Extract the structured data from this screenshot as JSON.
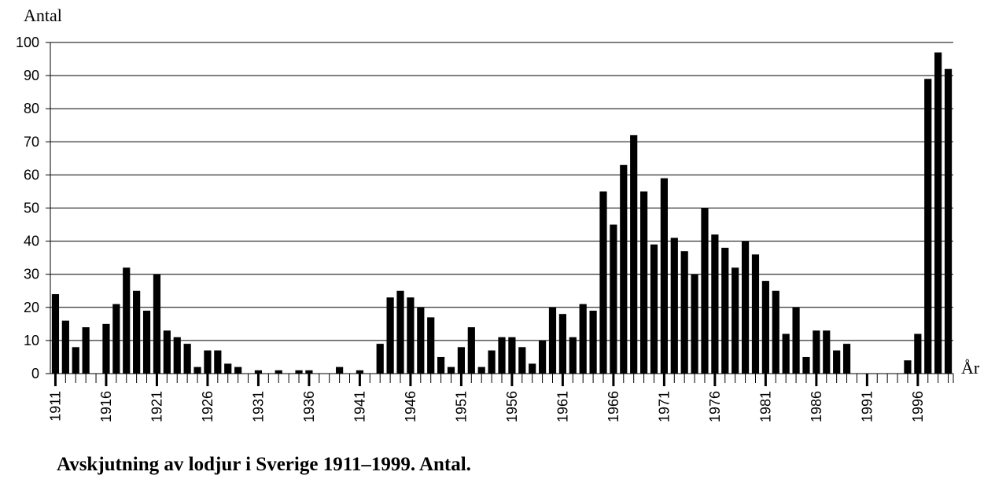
{
  "chart_data": {
    "type": "bar",
    "title": "Avskjutning av lodjur i Sverige 1911–1999. Antal.",
    "y_axis_label": "Antal",
    "x_axis_label": "År",
    "categories": [
      "1911",
      null,
      null,
      null,
      null,
      "1916",
      null,
      null,
      null,
      null,
      "1921",
      null,
      null,
      null,
      null,
      "1926",
      null,
      null,
      null,
      null,
      "1931",
      null,
      null,
      null,
      null,
      "1936",
      null,
      null,
      null,
      null,
      "1941",
      null,
      null,
      null,
      null,
      "1946",
      null,
      null,
      null,
      null,
      "1951",
      null,
      null,
      null,
      null,
      "1956",
      null,
      null,
      null,
      null,
      "1961",
      null,
      null,
      null,
      null,
      "1966",
      null,
      null,
      null,
      null,
      "1971",
      null,
      null,
      null,
      null,
      "1976",
      null,
      null,
      null,
      null,
      "1981",
      null,
      null,
      null,
      null,
      "1986",
      null,
      null,
      null,
      null,
      "1991",
      null,
      null,
      null,
      null,
      "1996",
      null,
      null,
      null
    ],
    "values": [
      24,
      16,
      8,
      14,
      0,
      15,
      21,
      32,
      25,
      19,
      30,
      13,
      11,
      9,
      2,
      7,
      7,
      3,
      2,
      0,
      1,
      0,
      1,
      0,
      1,
      1,
      0,
      0,
      2,
      0,
      1,
      0,
      9,
      23,
      25,
      23,
      20,
      17,
      5,
      2,
      8,
      14,
      2,
      7,
      11,
      11,
      8,
      3,
      10,
      20,
      18,
      11,
      21,
      19,
      55,
      45,
      63,
      72,
      55,
      39,
      59,
      41,
      37,
      30,
      50,
      42,
      38,
      32,
      40,
      36,
      28,
      25,
      12,
      20,
      5,
      13,
      13,
      7,
      9,
      0,
      0,
      0,
      0,
      0,
      4,
      12,
      89,
      97,
      92
    ],
    "color": "#000000",
    "ylim": [
      0,
      100
    ],
    "yticks": [
      0,
      10,
      20,
      30,
      40,
      50,
      60,
      70,
      80,
      90,
      100
    ],
    "grid": true
  }
}
